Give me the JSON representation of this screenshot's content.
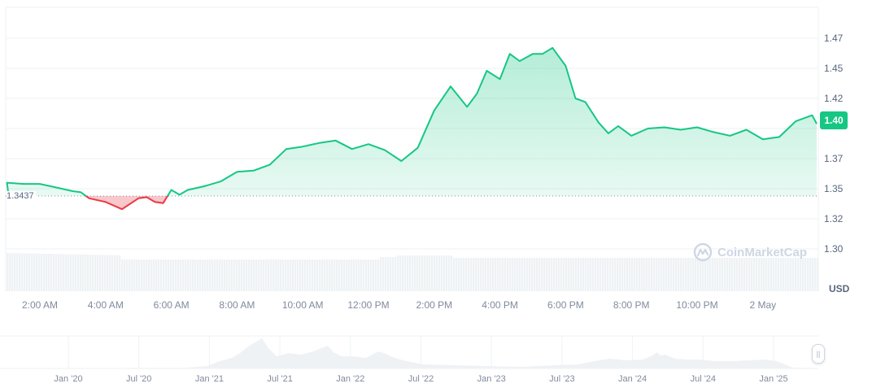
{
  "chart_data": {
    "type": "line",
    "title": "",
    "currency": "USD",
    "current_price": "1.40",
    "baseline": "1.3437",
    "xlabel": "",
    "ylabel": "USD",
    "ylim": [
      1.28,
      1.49
    ],
    "grid": true,
    "y_ticks": [
      "1.47",
      "1.45",
      "1.42",
      "1.40",
      "1.37",
      "1.35",
      "1.32",
      "1.30"
    ],
    "x_ticks": [
      "2:00 AM",
      "4:00 AM",
      "6:00 AM",
      "8:00 AM",
      "10:00 AM",
      "12:00 PM",
      "2:00 PM",
      "4:00 PM",
      "6:00 PM",
      "8:00 PM",
      "10:00 PM",
      "2 May"
    ],
    "series": [
      {
        "name": "Price",
        "color_above": "#16c784",
        "color_below": "#ea3943",
        "x_hours": [
          0.75,
          1.0,
          1.5,
          2.0,
          2.5,
          3.0,
          3.25,
          3.5,
          4.0,
          4.5,
          5.0,
          5.25,
          5.5,
          5.75,
          6.0,
          6.25,
          6.5,
          7.0,
          7.5,
          8.0,
          8.5,
          9.0,
          9.5,
          10.0,
          10.5,
          11.0,
          11.5,
          12.0,
          12.5,
          13.0,
          13.5,
          14.0,
          14.5,
          15.0,
          15.3,
          15.6,
          16.0,
          16.3,
          16.6,
          17.0,
          17.3,
          17.6,
          18.0,
          18.3,
          18.6,
          19.0,
          19.3,
          19.6,
          20.0,
          20.5,
          21.0,
          21.5,
          22.0,
          22.5,
          23.0,
          23.5,
          24.0,
          24.5,
          25.0,
          25.5,
          26.0
        ],
        "values": [
          1.347,
          1.355,
          1.354,
          1.354,
          1.351,
          1.348,
          1.347,
          1.342,
          1.339,
          1.333,
          1.342,
          1.343,
          1.339,
          1.338,
          1.349,
          1.345,
          1.349,
          1.352,
          1.356,
          1.364,
          1.365,
          1.37,
          1.383,
          1.385,
          1.388,
          1.39,
          1.383,
          1.387,
          1.382,
          1.373,
          1.384,
          1.415,
          1.435,
          1.418,
          1.429,
          1.448,
          1.441,
          1.462,
          1.456,
          1.462,
          1.462,
          1.467,
          1.452,
          1.425,
          1.422,
          1.405,
          1.396,
          1.402,
          1.394,
          1.4,
          1.401,
          1.399,
          1.401,
          1.397,
          1.394,
          1.399,
          1.391,
          1.393,
          1.406,
          1.411,
          1.404
        ]
      },
      {
        "name": "Volume",
        "color": "#eff2f5",
        "note": "relative bar heights, roughly flat"
      }
    ],
    "navigator": {
      "x_ticks": [
        "Jan '20",
        "Jul '20",
        "Jan '21",
        "Jul '21",
        "Jan '22",
        "Jul '22",
        "Jan '23",
        "Jul '23",
        "Jan '24",
        "Jul '24",
        "Jan '25"
      ],
      "note": "long-range overview area chart"
    }
  },
  "ui": {
    "watermark": "CoinMarketCap",
    "currency_label": "USD",
    "price_tag": "1.40",
    "baseline_label": "1.3437",
    "handle_glyph": "||"
  }
}
